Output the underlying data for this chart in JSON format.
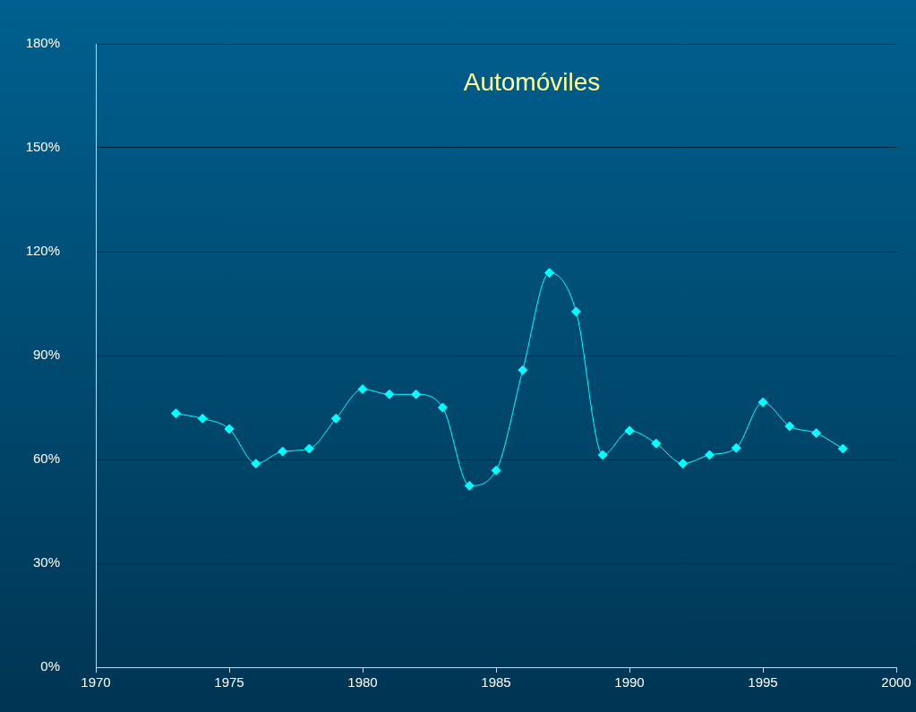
{
  "chart_data": {
    "type": "line",
    "title": "Automóviles",
    "x": [
      1973,
      1974,
      1975,
      1976,
      1977,
      1978,
      1979,
      1980,
      1981,
      1982,
      1983,
      1984,
      1985,
      1986,
      1987,
      1988,
      1989,
      1990,
      1991,
      1992,
      1993,
      1994,
      1995,
      1996,
      1997,
      1998
    ],
    "series": [
      {
        "color": "#00ffff",
        "values": [
          73.3,
          71.8,
          68.8,
          58.8,
          62.3,
          63.1,
          71.8,
          80.3,
          78.8,
          78.8,
          75.0,
          52.4,
          56.8,
          85.8,
          113.9,
          102.7,
          61.3,
          68.3,
          64.6,
          58.8,
          61.3,
          63.3,
          76.5,
          69.6,
          67.6,
          63.1
        ]
      }
    ],
    "xlim": [
      1970,
      2000
    ],
    "xticks": [
      1970,
      1975,
      1980,
      1985,
      1990,
      1995,
      2000
    ],
    "ylim": [
      0,
      180
    ],
    "yticks": [
      {
        "value": 0,
        "label": "0%"
      },
      {
        "value": 30,
        "label": "30%"
      },
      {
        "value": 60,
        "label": "60%"
      },
      {
        "value": 90,
        "label": "90%"
      },
      {
        "value": 120,
        "label": "120%"
      },
      {
        "value": 150,
        "label": "150%"
      },
      {
        "value": 180,
        "label": "180%"
      }
    ],
    "grid": "y",
    "legend": false,
    "marker": "diamond",
    "line_style": "solid"
  }
}
